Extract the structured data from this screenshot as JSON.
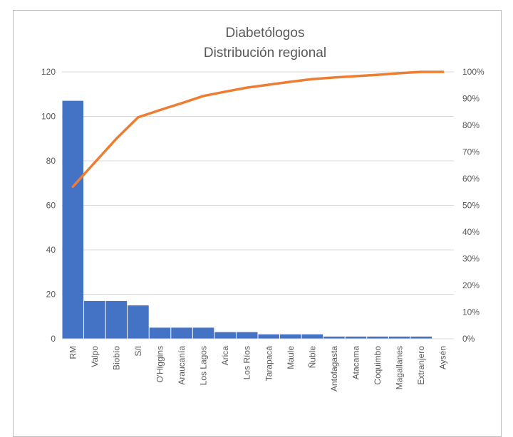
{
  "chart_data": {
    "type": "bar",
    "title": "Diabetólogos",
    "subtitle": "Distribución regional",
    "categories": [
      "RM",
      "Valpo",
      "Biobío",
      "S/I",
      "O'Higgins",
      "Araucanía",
      "Los Lagos",
      "Arica",
      "Los Ríos",
      "Tarapacá",
      "Maule",
      "Ñuble",
      "Antofagasta",
      "Atacama",
      "Coquimbo",
      "Magallanes",
      "Extranjero",
      "Aysén"
    ],
    "series": [
      {
        "type": "bar",
        "axis": "left",
        "color": "#4472c4",
        "values": [
          107,
          17,
          17,
          15,
          5,
          5,
          5,
          3,
          3,
          2,
          2,
          2,
          1,
          1,
          1,
          1,
          1,
          0
        ]
      },
      {
        "type": "line",
        "axis": "right",
        "color": "#ed7d31",
        "values": [
          57,
          66,
          75,
          83,
          85.7,
          88.3,
          91,
          92.6,
          94.1,
          95.2,
          96.3,
          97.3,
          97.9,
          98.4,
          98.9,
          99.5,
          100,
          100
        ]
      }
    ],
    "ylim": [
      0,
      120
    ],
    "yticks": [
      "0",
      "20",
      "40",
      "60",
      "80",
      "100",
      "120"
    ],
    "y2lim": [
      0,
      100
    ],
    "y2ticks": [
      "0%",
      "10%",
      "20%",
      "30%",
      "40%",
      "50%",
      "60%",
      "70%",
      "80%",
      "90%",
      "100%"
    ],
    "grid": true,
    "legend": "none"
  }
}
